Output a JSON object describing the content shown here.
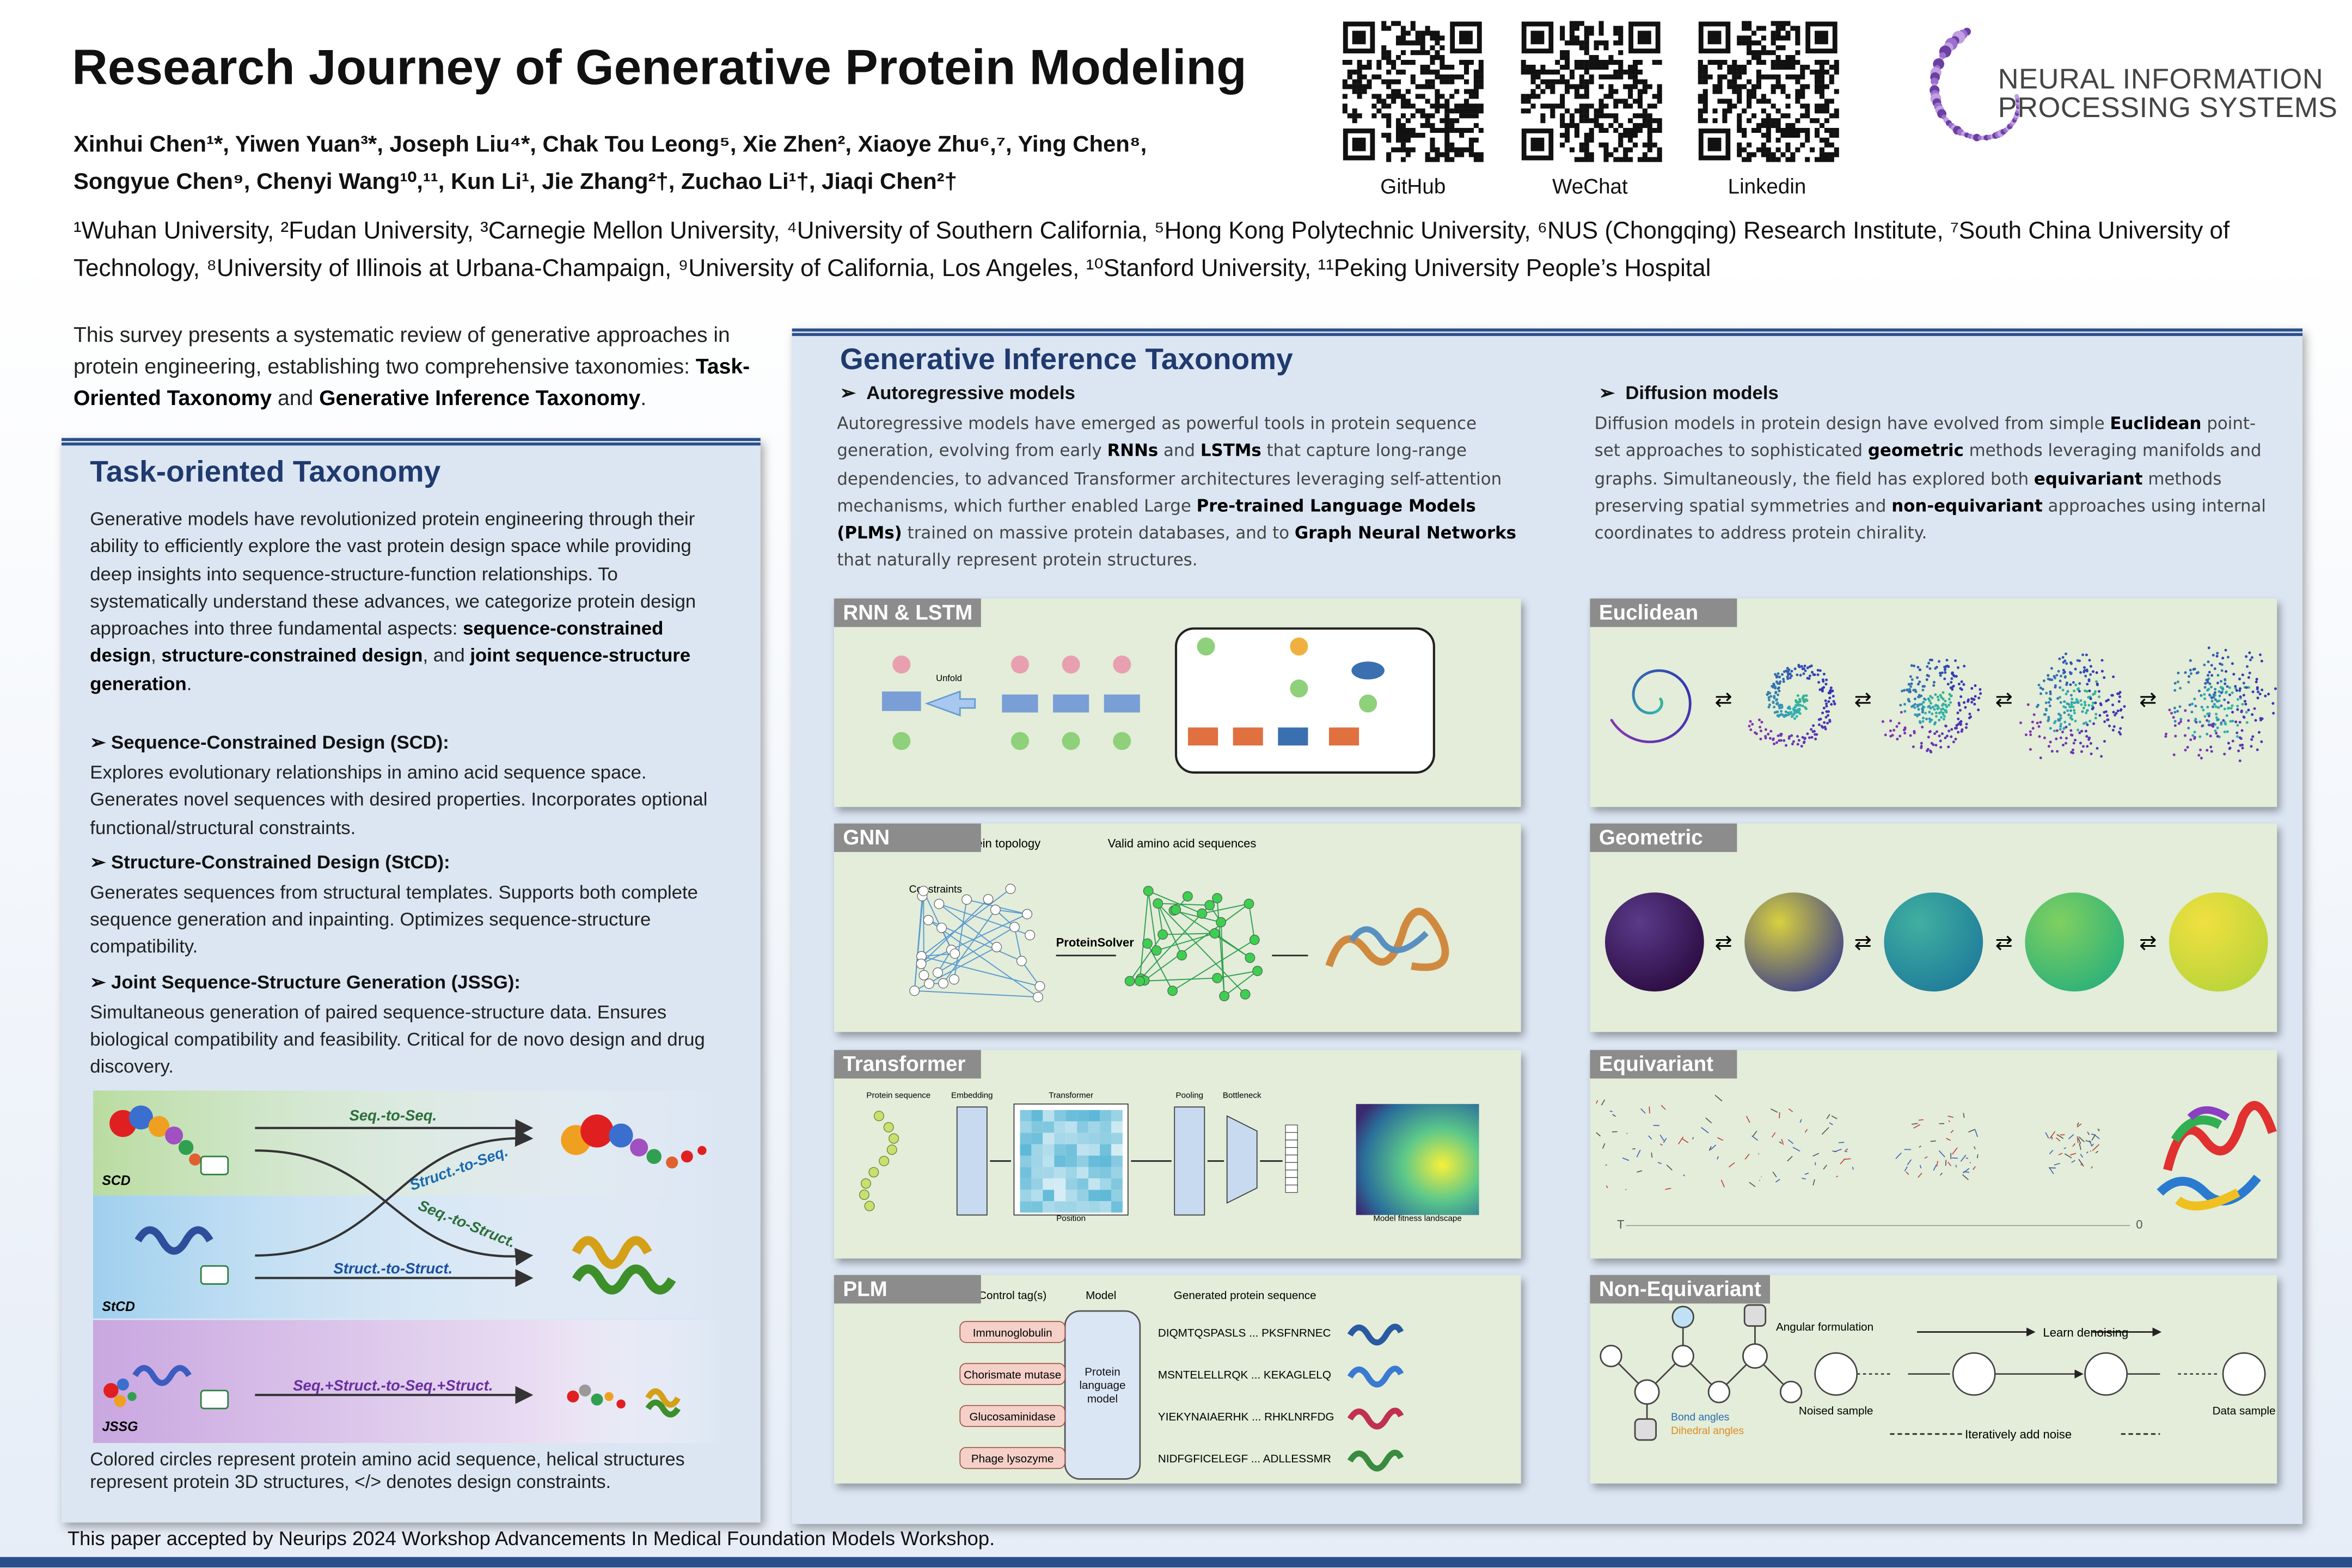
{
  "header": {
    "title": "Research Journey of Generative Protein Modeling",
    "authors": [
      "Xinhui Chen¹*, Yiwen Yuan³*, Joseph Liu⁴*, Chak Tou Leong⁵, Xie Zhen², Xiaoye Zhu⁶,⁷, Ying Chen⁸,",
      "Songyue Chen⁹, Chenyi Wang¹⁰,¹¹, Kun Li¹, Jie Zhang²†, Zuchao Li¹†, Jiaqi Chen²†"
    ],
    "affiliations": "¹Wuhan University, ²Fudan University, ³Carnegie Mellon University, ⁴University of Southern California, ⁵Hong Kong Polytechnic University, ⁶NUS (Chongqing) Research Institute, ⁷South China University of Technology, ⁸University of Illinois at Urbana-Champaign, ⁹University of California, Los Angeles, ¹⁰Stanford University, ¹¹Peking University People’s Hospital",
    "links": [
      "GitHub",
      "WeChat",
      "Linkedin"
    ],
    "logo": [
      "NEURAL INFORMATION",
      "PROCESSING SYSTEMS"
    ]
  },
  "intro": [
    "This survey presents a systematic review of generative approaches in protein engineering, establishing two comprehensive taxonomies: ",
    {
      "bold": "Task-Oriented Taxonomy"
    },
    " and ",
    {
      "bold": "Generative Inference Taxonomy"
    },
    "."
  ],
  "task_panel": {
    "title": "Task-oriented Taxonomy",
    "body": [
      "Generative models have revolutionized protein engineering through their ability to efficiently explore the vast protein design space while providing deep insights into sequence-structure-function relationships. To systematically understand these advances, we categorize protein design approaches into three fundamental aspects: ",
      {
        "bold": "sequence-constrained design"
      },
      ", ",
      {
        "bold": "structure-constrained design"
      },
      ", and ",
      {
        "bold": "joint sequence-structure generation"
      },
      "."
    ],
    "sections": [
      {
        "heading": "Sequence-Constrained Design (SCD):",
        "text": "Explores evolutionary relationships in amino acid sequence space. Generates novel sequences with desired properties. Incorporates optional functional/structural constraints."
      },
      {
        "heading": "Structure-Constrained Design (StCD):",
        "text": "Generates sequences from structural templates. Supports both complete sequence generation and inpainting. Optimizes sequence-structure compatibility."
      },
      {
        "heading": "Joint Sequence-Structure Generation (JSSG):",
        "text": "Simultaneous generation of paired sequence-structure data. Ensures biological compatibility and feasibility. Critical for de novo design and drug discovery."
      }
    ],
    "figure": {
      "rows": [
        "SCD",
        "StCD",
        "JSSG"
      ],
      "arrows": [
        "Seq.-to-Seq.",
        "Struct.-to-Seq.",
        "Seq.-to-Struct.",
        "Struct.-to-Struct.",
        "Seq.+Struct.-to-Seq.+Struct."
      ]
    },
    "caption": "Colored circles represent protein amino acid sequence, helical structures represent protein 3D structures, </> denotes design constraints."
  },
  "inference_panel": {
    "title": "Generative Inference Taxonomy",
    "autoregressive": {
      "heading": "Autoregressive models",
      "body": [
        "Autoregressive models have emerged as powerful tools in protein sequence generation, evolving from early ",
        {
          "bold": "RNNs"
        },
        " and ",
        {
          "bold": "LSTMs"
        },
        " that capture long-range dependencies, to advanced Transformer architectures leveraging self-attention mechanisms, which further enabled Large ",
        {
          "bold": "Pre-trained Language Models (PLMs)"
        },
        " trained on massive protein databases, and to ",
        {
          "bold": "Graph Neural Networks"
        },
        " that naturally represent protein structures."
      ]
    },
    "diffusion": {
      "heading": "Diffusion models",
      "body": [
        "Diffusion models in protein design have evolved from simple ",
        {
          "bold": "Euclidean"
        },
        " point-set approaches to sophisticated ",
        {
          "bold": "geometric"
        },
        " methods leveraging manifolds and graphs. Simultaneously, the field has explored both ",
        {
          "bold": "equivariant"
        },
        " methods preserving spatial symmetries and ",
        {
          "bold": "non-equivariant"
        },
        " approaches using internal coordinates to address protein chirality."
      ]
    },
    "figures": {
      "rnn": {
        "label": "RNN & LSTM",
        "unfold": "Unfold"
      },
      "gnn": {
        "label": "GNN",
        "texts": [
          "Target protein topology",
          "Valid amino acid sequences",
          "Constraints",
          "ProteinSolver"
        ]
      },
      "transformer": {
        "label": "Transformer",
        "texts": [
          "Protein sequence",
          "Embedding",
          "Transformer",
          "Pooling",
          "Bottleneck",
          "Position",
          "Model fitness landscape"
        ]
      },
      "plm": {
        "label": "PLM",
        "columns": [
          "Control tag(s)",
          "Model",
          "Generated protein sequence"
        ],
        "model": "Protein language model",
        "tags": [
          "Immunoglobulin",
          "Chorismate mutase",
          "Glucosaminidase",
          "Phage lysozyme"
        ],
        "sequences": [
          "DIQMTQSPASLS ... PKSFNRNEC",
          "MSNTELELLRQK ... KEKAGLELQ",
          "YIEKYNAIAERHK ... RHKLNRFDG",
          "NIDFGFICELEGF ... ADLLESSMR"
        ]
      },
      "euclidean": {
        "label": "Euclidean"
      },
      "geometric": {
        "label": "Geometric"
      },
      "equivariant": {
        "label": "Equivariant",
        "axis": [
          "T",
          "0"
        ]
      },
      "nonequivariant": {
        "label": "Non-Equivariant",
        "texts": [
          "Angular formulation",
          "Bond angles",
          "Dihedral angles",
          "Learn denoising",
          "Iteratively add noise",
          "Noised sample",
          "Data sample"
        ]
      }
    }
  },
  "footer": "This paper accepted by Neurips 2024 Workshop Advancements In Medical Foundation Models Workshop."
}
